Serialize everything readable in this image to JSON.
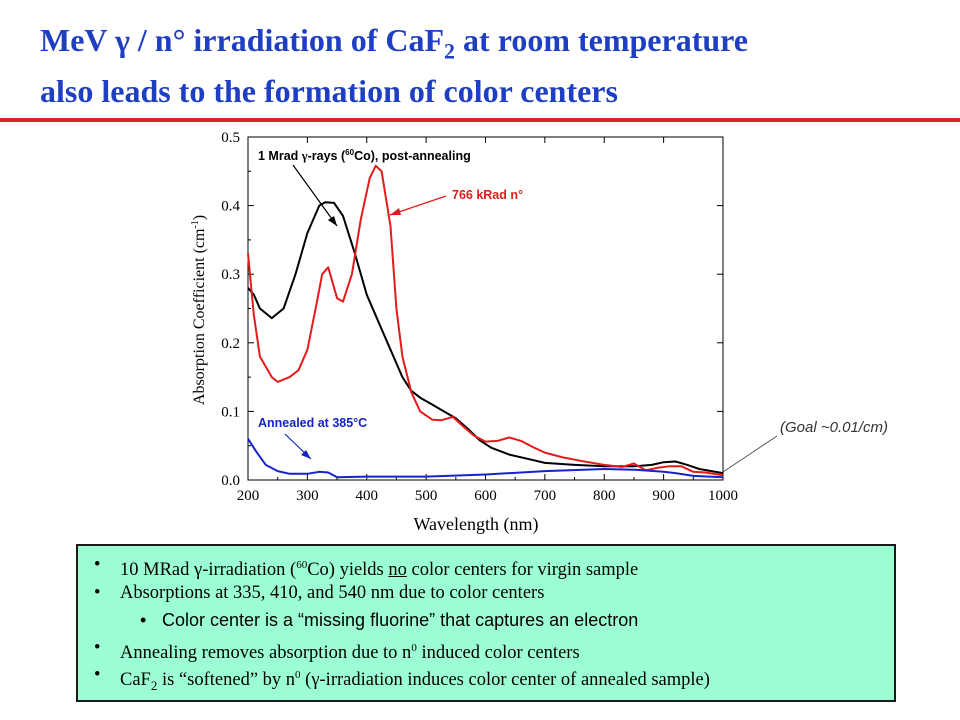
{
  "title": {
    "line1_a": "MeV ",
    "line1_gamma": "γ",
    "line1_b": " / n° irradiation of CaF",
    "line1_sub": "2",
    "line1_c": " at room temperature",
    "line2": "also leads to the formation of color centers"
  },
  "colors": {
    "title": "#1f3fc3",
    "rule": "#d9232a",
    "box": "#9cffd3"
  },
  "chart_data": {
    "type": "line",
    "xlabel": "Wavelength (nm)",
    "ylabel": "Absorption Coefficient (cm",
    "ylabel_sup": "-1",
    "ylabel_end": ")",
    "xlim": [
      200,
      1000
    ],
    "ylim": [
      0.0,
      0.5
    ],
    "xticks": [
      200,
      300,
      400,
      500,
      600,
      700,
      800,
      900,
      1000
    ],
    "yticks": [
      0.0,
      0.1,
      0.2,
      0.3,
      0.4,
      0.5
    ],
    "ytick_labels": [
      "0.0",
      "0.1",
      "0.2",
      "0.3",
      "0.4",
      "0.5"
    ],
    "grid": false,
    "series": [
      {
        "color": "#000000",
        "points": [
          [
            200,
            0.28
          ],
          [
            210,
            0.27
          ],
          [
            220,
            0.25
          ],
          [
            240,
            0.236
          ],
          [
            260,
            0.25
          ],
          [
            280,
            0.3
          ],
          [
            300,
            0.36
          ],
          [
            320,
            0.4
          ],
          [
            330,
            0.405
          ],
          [
            345,
            0.404
          ],
          [
            360,
            0.385
          ],
          [
            380,
            0.33
          ],
          [
            400,
            0.27
          ],
          [
            420,
            0.23
          ],
          [
            440,
            0.19
          ],
          [
            460,
            0.15
          ],
          [
            475,
            0.13
          ],
          [
            490,
            0.12
          ],
          [
            510,
            0.11
          ],
          [
            530,
            0.1
          ],
          [
            550,
            0.09
          ],
          [
            570,
            0.075
          ],
          [
            590,
            0.058
          ],
          [
            610,
            0.047
          ],
          [
            640,
            0.037
          ],
          [
            670,
            0.031
          ],
          [
            700,
            0.025
          ],
          [
            750,
            0.022
          ],
          [
            800,
            0.02
          ],
          [
            850,
            0.02
          ],
          [
            880,
            0.022
          ],
          [
            900,
            0.026
          ],
          [
            920,
            0.027
          ],
          [
            940,
            0.022
          ],
          [
            960,
            0.016
          ],
          [
            1000,
            0.01
          ]
        ]
      },
      {
        "color": "#e31b1b",
        "points": [
          [
            200,
            0.33
          ],
          [
            210,
            0.24
          ],
          [
            220,
            0.18
          ],
          [
            240,
            0.15
          ],
          [
            250,
            0.143
          ],
          [
            270,
            0.15
          ],
          [
            285,
            0.16
          ],
          [
            300,
            0.19
          ],
          [
            315,
            0.255
          ],
          [
            325,
            0.3
          ],
          [
            335,
            0.31
          ],
          [
            350,
            0.265
          ],
          [
            360,
            0.26
          ],
          [
            375,
            0.3
          ],
          [
            390,
            0.38
          ],
          [
            405,
            0.44
          ],
          [
            415,
            0.458
          ],
          [
            425,
            0.45
          ],
          [
            440,
            0.37
          ],
          [
            450,
            0.25
          ],
          [
            460,
            0.18
          ],
          [
            475,
            0.128
          ],
          [
            490,
            0.1
          ],
          [
            510,
            0.088
          ],
          [
            525,
            0.087
          ],
          [
            545,
            0.092
          ],
          [
            560,
            0.08
          ],
          [
            580,
            0.065
          ],
          [
            600,
            0.056
          ],
          [
            620,
            0.057
          ],
          [
            640,
            0.062
          ],
          [
            660,
            0.057
          ],
          [
            680,
            0.048
          ],
          [
            700,
            0.04
          ],
          [
            730,
            0.033
          ],
          [
            760,
            0.028
          ],
          [
            800,
            0.022
          ],
          [
            830,
            0.019
          ],
          [
            850,
            0.024
          ],
          [
            870,
            0.014
          ],
          [
            890,
            0.018
          ],
          [
            910,
            0.02
          ],
          [
            930,
            0.02
          ],
          [
            950,
            0.012
          ],
          [
            970,
            0.011
          ],
          [
            1000,
            0.007
          ]
        ]
      },
      {
        "color": "#1523c8",
        "points": [
          [
            200,
            0.06
          ],
          [
            215,
            0.04
          ],
          [
            230,
            0.022
          ],
          [
            250,
            0.013
          ],
          [
            270,
            0.009
          ],
          [
            300,
            0.009
          ],
          [
            320,
            0.012
          ],
          [
            335,
            0.011
          ],
          [
            350,
            0.004
          ],
          [
            400,
            0.005
          ],
          [
            500,
            0.005
          ],
          [
            600,
            0.008
          ],
          [
            700,
            0.013
          ],
          [
            800,
            0.016
          ],
          [
            850,
            0.015
          ],
          [
            900,
            0.012
          ],
          [
            920,
            0.01
          ],
          [
            950,
            0.006
          ],
          [
            1000,
            0.004
          ]
        ]
      }
    ],
    "annotations": {
      "gamma_a": "1 Mrad ",
      "gamma_sym": "γ",
      "gamma_b": "-rays (",
      "gamma_sup": "60",
      "gamma_c": "Co),  post-annealing",
      "neutron": "766 kRad n°",
      "annealed": "Annealed at 385°C",
      "goal": "(Goal ~0.01/cm)"
    }
  },
  "bullets": {
    "b1": {
      "a": "10 MRad ",
      "gamma": "γ",
      "b": "-irradiation (",
      "sup": "60",
      "c": "Co) yields ",
      "no": "no",
      "d": " color centers for virgin sample"
    },
    "b2": "Absorptions at 335, 410, and 540 nm due to color centers",
    "b3": "Color center is a “missing fluorine” that captures an electron",
    "b4": {
      "a": "Annealing removes absorption due to n",
      "sup": "0",
      "b": " induced color centers"
    },
    "b5": {
      "a": "CaF",
      "sub": "2",
      "b": " is “softened” by n",
      "sup": "0",
      "c": " (",
      "gamma": "γ",
      "d": "-irradiation induces color center of annealed sample)"
    },
    "bullet_char": "•"
  }
}
